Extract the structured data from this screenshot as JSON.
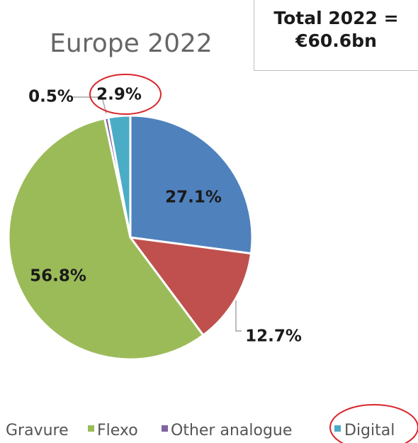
{
  "chart_data": {
    "type": "pie",
    "title": "Europe 2022",
    "annotation": {
      "line1": "Total 2022 =",
      "line2": "€60.6bn"
    },
    "slices": [
      {
        "name": "Gravure",
        "value": 27.1,
        "label": "27.1%",
        "color": "#4f81bd"
      },
      {
        "name": "",
        "value": 12.7,
        "label": "12.7%",
        "color": "#c0504d"
      },
      {
        "name": "Flexo",
        "value": 56.8,
        "label": "56.8%",
        "color": "#9bbb59"
      },
      {
        "name": "Other analogue",
        "value": 0.5,
        "label": "0.5%",
        "color": "#8064a2"
      },
      {
        "name": "Digital",
        "value": 2.9,
        "label": "2.9%",
        "color": "#4bacc6"
      }
    ],
    "legend": {
      "placement": "bottom",
      "items": [
        {
          "label": "Gravure",
          "color": "#4f81bd"
        },
        {
          "label": "Flexo",
          "color": "#9bbb59"
        },
        {
          "label": "Other analogue",
          "color": "#8064a2"
        },
        {
          "label": "Digital",
          "color": "#4bacc6"
        }
      ]
    },
    "highlight_color": "#d9262b"
  }
}
